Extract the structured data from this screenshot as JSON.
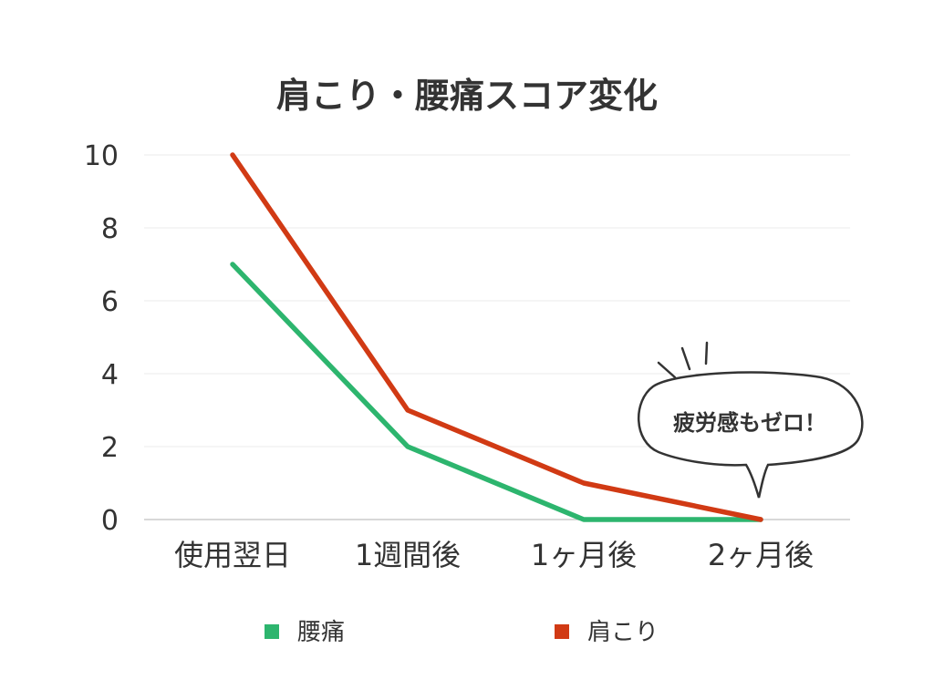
{
  "chart_data": {
    "type": "line",
    "title": "肩こり・腰痛スコア変化",
    "categories": [
      "使用翌日",
      "1週間後",
      "1ヶ月後",
      "2ヶ月後"
    ],
    "series": [
      {
        "name": "腰痛",
        "color": "#2db56e",
        "values": [
          7,
          2,
          0,
          0
        ]
      },
      {
        "name": "肩こり",
        "color": "#d13a14",
        "values": [
          10,
          3,
          1,
          0
        ]
      }
    ],
    "ylim": [
      0,
      10
    ],
    "yticks": [
      0,
      2,
      4,
      6,
      8,
      10
    ],
    "grid": true,
    "legend": "bottom",
    "annotation": "疲労感もゼロ！"
  }
}
